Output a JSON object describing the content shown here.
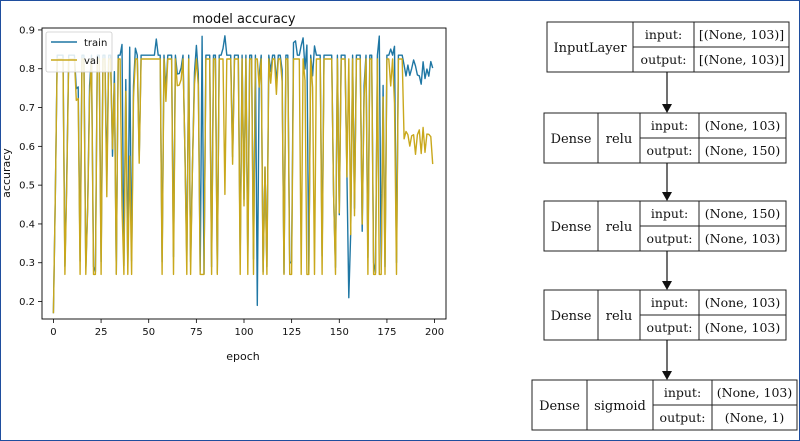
{
  "chart_data": {
    "type": "line",
    "title": "model accuracy",
    "xlabel": "epoch",
    "ylabel": "accuracy",
    "xlim": [
      -6,
      206
    ],
    "ylim": [
      0.155,
      0.905
    ],
    "xticks": [
      "0",
      "25",
      "50",
      "75",
      "100",
      "125",
      "150",
      "175",
      "200"
    ],
    "yticks": [
      "0.2",
      "0.3",
      "0.4",
      "0.5",
      "0.6",
      "0.7",
      "0.8",
      "0.9"
    ],
    "legend_position": "top-left",
    "grid": false,
    "series": [
      {
        "name": "train",
        "color": "#1f77a4"
      },
      {
        "name": "val",
        "color": "#c9a81c"
      }
    ]
  },
  "model": {
    "input_label": "input:",
    "output_label": "output:",
    "layers": [
      {
        "type": "InputLayer",
        "activation": "",
        "input": "[(None, 103)]",
        "output": "[(None, 103)]"
      },
      {
        "type": "Dense",
        "activation": "relu",
        "input": "(None, 103)",
        "output": "(None, 150)"
      },
      {
        "type": "Dense",
        "activation": "relu",
        "input": "(None, 150)",
        "output": "(None, 103)"
      },
      {
        "type": "Dense",
        "activation": "relu",
        "input": "(None, 103)",
        "output": "(None, 103)"
      },
      {
        "type": "Dense",
        "activation": "sigmoid",
        "input": "(None, 103)",
        "output": "(None, 1)"
      }
    ]
  }
}
